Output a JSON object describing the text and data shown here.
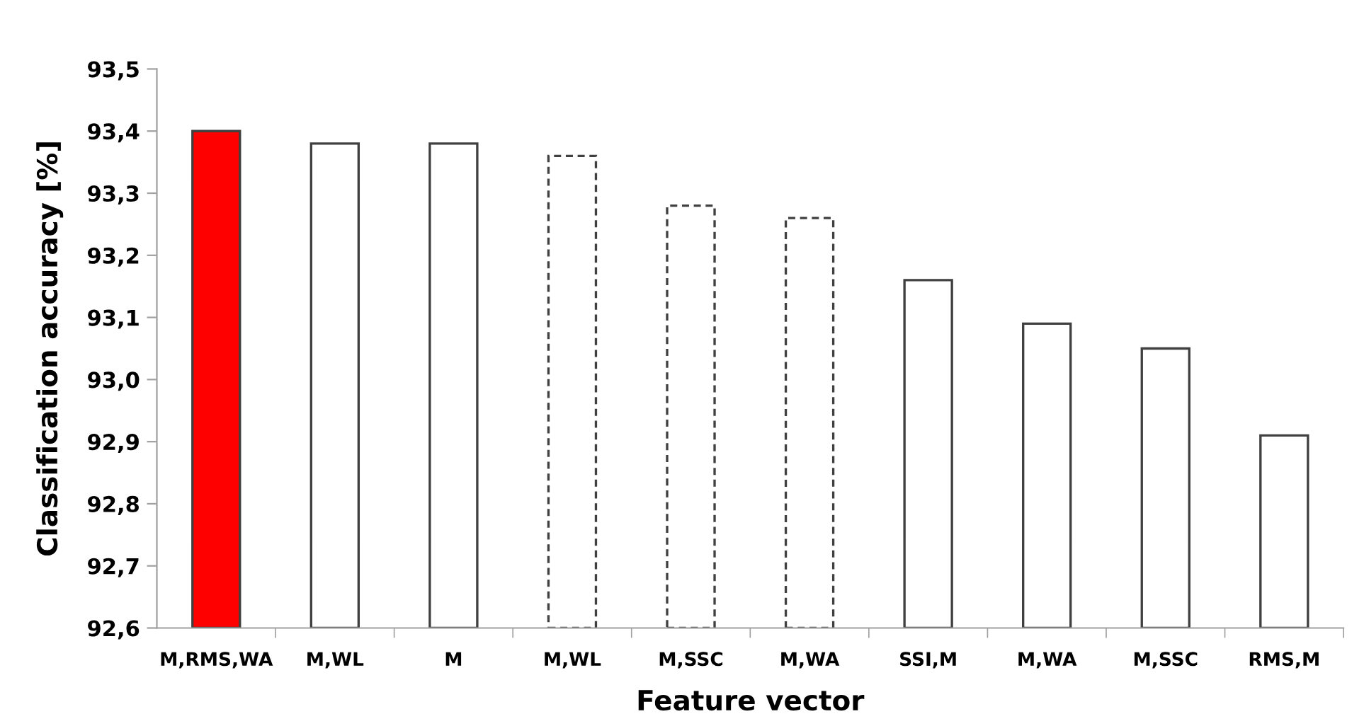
{
  "chart_data": {
    "type": "bar",
    "xlabel": "Feature vector",
    "ylabel": "Classification accuracy [%]",
    "categories": [
      "M,RMS,WA",
      "M,WL",
      "M",
      "M,WL",
      "M,SSC",
      "M,WA",
      "SSI,M",
      "M,WA",
      "M,SSC",
      "RMS,M"
    ],
    "series": [
      {
        "line_style": "solid",
        "colors": [
          "#ff0000",
          "#ffffff",
          "#ffffff",
          null,
          null,
          null,
          "#ffffff",
          "#ffffff",
          "#ffffff",
          "#ffffff"
        ],
        "values": [
          93.4,
          93.38,
          93.38,
          null,
          null,
          null,
          93.16,
          93.09,
          93.05,
          92.91
        ]
      },
      {
        "line_style": "dashed",
        "colors": [
          null,
          null,
          null,
          "#ffffff",
          "#ffffff",
          "#ffffff",
          null,
          null,
          null,
          null
        ],
        "values": [
          null,
          null,
          null,
          93.36,
          93.28,
          93.26,
          null,
          null,
          null,
          null
        ]
      }
    ],
    "ylim": [
      92.6,
      93.5
    ],
    "yticks": [
      {
        "value": 92.6,
        "label": "92,6"
      },
      {
        "value": 92.7,
        "label": "92,7"
      },
      {
        "value": 92.8,
        "label": "92,8"
      },
      {
        "value": 92.9,
        "label": "92,9"
      },
      {
        "value": 93.0,
        "label": "93,0"
      },
      {
        "value": 93.1,
        "label": "93,1"
      },
      {
        "value": 93.2,
        "label": "93,2"
      },
      {
        "value": 93.3,
        "label": "93,3"
      },
      {
        "value": 93.4,
        "label": "93,4"
      },
      {
        "value": 93.5,
        "label": "93,5"
      }
    ],
    "grid": false
  }
}
